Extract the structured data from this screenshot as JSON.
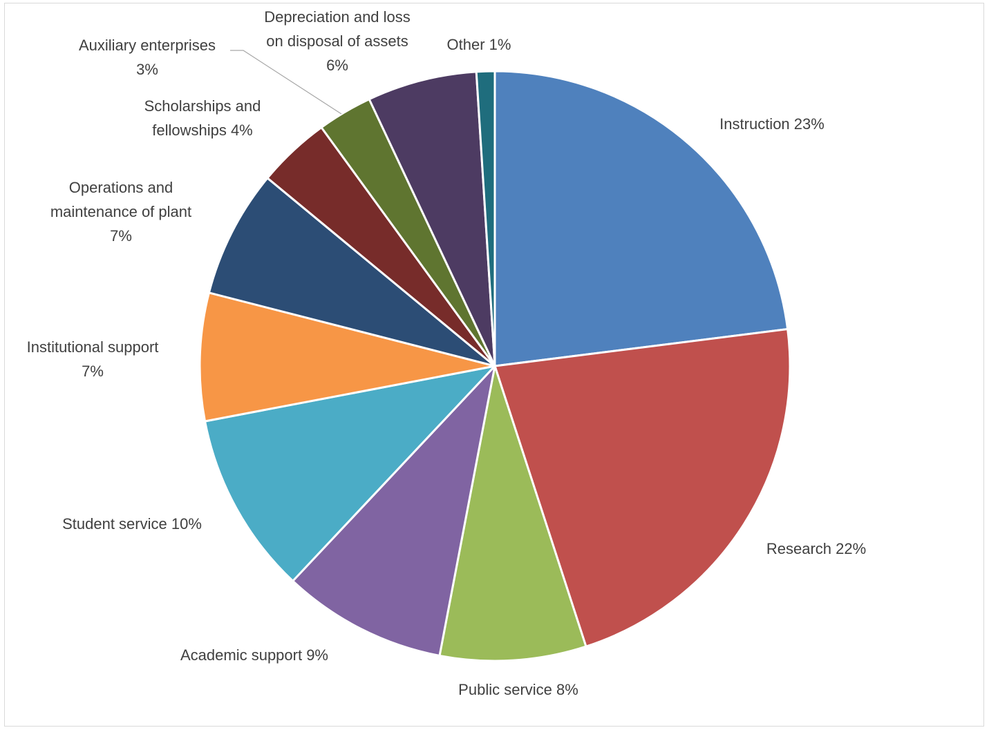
{
  "chart_data": {
    "type": "pie",
    "start_angle_deg": 0,
    "direction": "clockwise",
    "slices": [
      {
        "label": "Instruction",
        "value": 23,
        "pct_text": "23%",
        "color": "#4F81BD"
      },
      {
        "label": "Research",
        "value": 22,
        "pct_text": "22%",
        "color": "#C0504D"
      },
      {
        "label": "Public service",
        "value": 8,
        "pct_text": "8%",
        "color": "#9BBB59"
      },
      {
        "label": "Academic support",
        "value": 9,
        "pct_text": "9%",
        "color": "#8064A2"
      },
      {
        "label": "Student service",
        "value": 10,
        "pct_text": "10%",
        "color": "#4BACC6"
      },
      {
        "label": "Institutional support",
        "value": 7,
        "pct_text": "7%",
        "color": "#F79646"
      },
      {
        "label": "Operations and maintenance of plant",
        "value": 7,
        "pct_text": "7%",
        "color": "#2C4D75"
      },
      {
        "label": "Scholarships and fellowships",
        "value": 4,
        "pct_text": "4%",
        "color": "#772C2A"
      },
      {
        "label": "Auxiliary enterprises",
        "value": 3,
        "pct_text": "3%",
        "color": "#5F7530"
      },
      {
        "label": "Depreciation and loss on disposal of assets",
        "value": 6,
        "pct_text": "6%",
        "color": "#4D3B62"
      },
      {
        "label": "Other",
        "value": 1,
        "pct_text": "1%",
        "color": "#1F6D7D"
      }
    ],
    "data_labels": [
      {
        "lines": [
          "Instruction 23%"
        ]
      },
      {
        "lines": [
          "Research 22%"
        ]
      },
      {
        "lines": [
          "Public service 8%"
        ]
      },
      {
        "lines": [
          "Academic support 9%"
        ]
      },
      {
        "lines": [
          "Student service 10%"
        ]
      },
      {
        "lines": [
          "Institutional support",
          "7%"
        ]
      },
      {
        "lines": [
          "Operations and",
          "maintenance of plant",
          "7%"
        ]
      },
      {
        "lines": [
          "Scholarships and",
          "fellowships 4%"
        ]
      },
      {
        "lines": [
          "Auxiliary enterprises",
          "3%"
        ]
      },
      {
        "lines": [
          "Depreciation and loss",
          "on disposal of assets",
          "6%"
        ]
      },
      {
        "lines": [
          "Other 1%"
        ]
      }
    ]
  }
}
